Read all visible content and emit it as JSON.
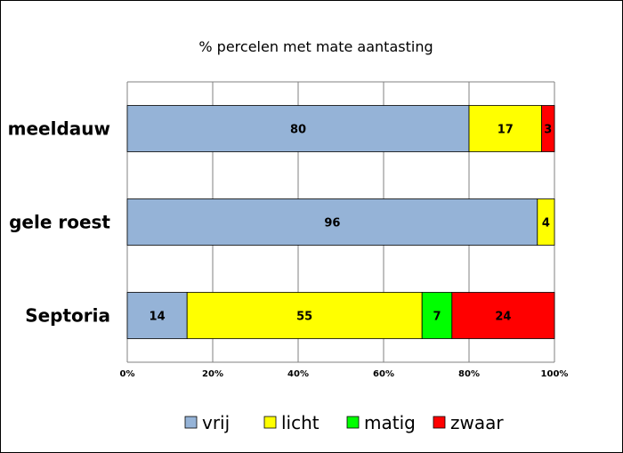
{
  "chart_data": {
    "type": "bar",
    "orientation": "horizontal",
    "stacked": "percent",
    "title": "% percelen met mate aantasting",
    "categories": [
      "meeldauw",
      "gele roest",
      "Septoria"
    ],
    "series": [
      {
        "name": "vrij",
        "color": "#95b3d7",
        "values": [
          80,
          96,
          14
        ]
      },
      {
        "name": "licht",
        "color": "#ffff00",
        "values": [
          17,
          4,
          55
        ]
      },
      {
        "name": "matig",
        "color": "#00ff00",
        "values": [
          0,
          0,
          7
        ]
      },
      {
        "name": "zwaar",
        "color": "#ff0000",
        "values": [
          3,
          0,
          24
        ]
      }
    ],
    "xlim": [
      0,
      100
    ],
    "xticks": [
      "0%",
      "20%",
      "40%",
      "60%",
      "80%",
      "100%"
    ],
    "grid": true,
    "legend": "bottom"
  }
}
